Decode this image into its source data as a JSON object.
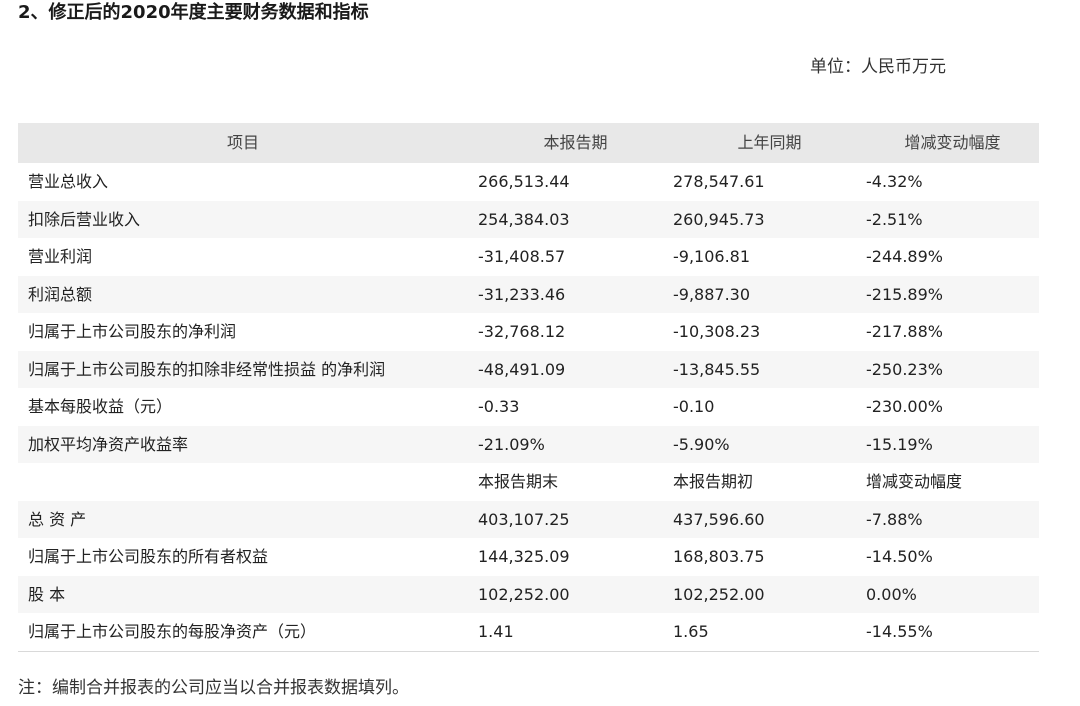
{
  "title": "2、修正后的2020年度主要财务数据和指标",
  "unit": "单位：人民币万元",
  "table": {
    "header": [
      "项目",
      "本报告期",
      "上年同期",
      "增减变动幅度"
    ],
    "rows": [
      [
        "营业总收入",
        "266,513.44",
        "278,547.61",
        "-4.32%"
      ],
      [
        "扣除后营业收入",
        "254,384.03",
        "260,945.73",
        "-2.51%"
      ],
      [
        "营业利润",
        "-31,408.57",
        "-9,106.81",
        "-244.89%"
      ],
      [
        "利润总额",
        "-31,233.46",
        "-9,887.30",
        "-215.89%"
      ],
      [
        "归属于上市公司股东的净利润",
        "-32,768.12",
        "-10,308.23",
        "-217.88%"
      ],
      [
        "归属于上市公司股东的扣除非经常性损益 的净利润",
        "-48,491.09",
        "-13,845.55",
        "-250.23%"
      ],
      [
        "基本每股收益（元）",
        "-0.33",
        "-0.10",
        "-230.00%"
      ],
      [
        "加权平均净资产收益率",
        "-21.09%",
        "-5.90%",
        "-15.19%"
      ],
      [
        "",
        "本报告期末",
        "本报告期初",
        "增减变动幅度"
      ],
      [
        "总 资 产",
        "403,107.25",
        "437,596.60",
        "-7.88%"
      ],
      [
        "归属于上市公司股东的所有者权益",
        "144,325.09",
        "168,803.75",
        "-14.50%"
      ],
      [
        "股 本",
        "102,252.00",
        "102,252.00",
        "0.00%"
      ],
      [
        "归属于上市公司股东的每股净资产（元）",
        "1.41",
        "1.65",
        "-14.55%"
      ]
    ]
  },
  "note": "注：编制合并报表的公司应当以合并报表数据填列。"
}
